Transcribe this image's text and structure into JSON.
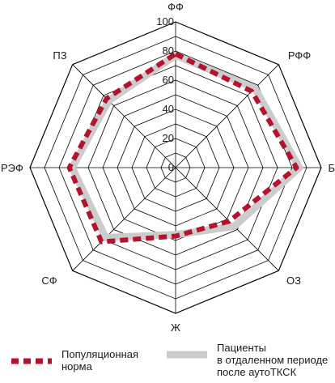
{
  "chart_data": {
    "type": "radar",
    "categories": [
      "ФФ",
      "РФФ",
      "Б",
      "ОЗ",
      "Ж",
      "СФ",
      "РЭФ",
      "ПЗ"
    ],
    "rlim": [
      0,
      100
    ],
    "rticks": [
      0,
      20,
      40,
      60,
      80,
      100
    ],
    "grid": true,
    "legend_position": "bottom",
    "series": [
      {
        "name": "Популяционная норма",
        "values": [
          78,
          74,
          83,
          52,
          47,
          72,
          73,
          67
        ],
        "color": "#b3132d",
        "style": "dashed"
      },
      {
        "name": "Пациенты в отдаленном периоде после аутоТКСК",
        "values": [
          77,
          77,
          85,
          57,
          46,
          68,
          71,
          65
        ],
        "color": "#cccccc",
        "style": "solid"
      }
    ]
  },
  "legend": [
    {
      "label": "Популяционная\nнорма",
      "color": "#b3132d",
      "style": "dashed"
    },
    {
      "label": "Пациенты\nв отдаленном периоде\nпосле аутоТКСК",
      "color": "#cccccc",
      "style": "solid"
    }
  ]
}
